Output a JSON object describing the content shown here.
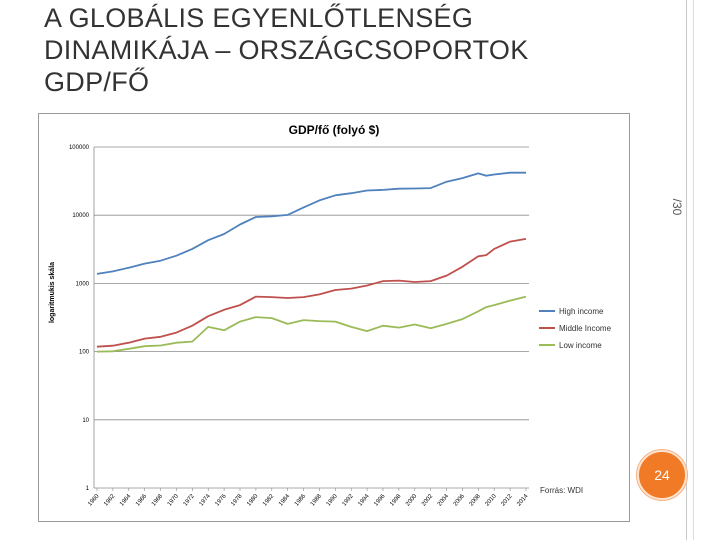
{
  "slide": {
    "title_lines": [
      "A GLOBÁLIS EGYENLŐTLENSÉG",
      "DINAMIKÁJA – ORSZÁGCSOPORTOK",
      "GDP/FŐ"
    ],
    "side_number": "/30",
    "page_number": "24",
    "accent_color": "#f07a26"
  },
  "chart_data": {
    "type": "line",
    "title": "GDP/fő (folyó $)",
    "ylabel": "logaritmukis skála",
    "xlabel": "",
    "yscale": "log",
    "ylim": [
      1,
      100000
    ],
    "yticks": [
      "1",
      "10",
      "100",
      "1000",
      "10000",
      "100000"
    ],
    "xlim": [
      1960,
      2014
    ],
    "xticks": [
      "1960",
      "1962",
      "1964",
      "1966",
      "1968",
      "1970",
      "1972",
      "1974",
      "1976",
      "1978",
      "1980",
      "1982",
      "1984",
      "1986",
      "1988",
      "1990",
      "1992",
      "1994",
      "1996",
      "1998",
      "2000",
      "2002",
      "2004",
      "2006",
      "2008",
      "2010",
      "2012",
      "2014"
    ],
    "grid": true,
    "legend_position": "right",
    "source_note": "Forrás: WDI",
    "series": [
      {
        "name": "High income",
        "color": "#4f81bd",
        "x": [
          1960,
          1962,
          1964,
          1966,
          1968,
          1970,
          1972,
          1974,
          1976,
          1978,
          1980,
          1982,
          1984,
          1986,
          1988,
          1990,
          1992,
          1994,
          1996,
          1998,
          2000,
          2002,
          2004,
          2006,
          2008,
          2009,
          2010,
          2012,
          2014
        ],
        "values": [
          1380,
          1500,
          1700,
          1950,
          2150,
          2550,
          3200,
          4300,
          5300,
          7300,
          9400,
          9600,
          10100,
          13000,
          16500,
          19600,
          21000,
          23000,
          23500,
          24500,
          24600,
          25000,
          31000,
          35000,
          41000,
          38000,
          39500,
          42000,
          42000
        ]
      },
      {
        "name": "Middle Income",
        "color": "#c0504d",
        "x": [
          1960,
          1962,
          1964,
          1966,
          1968,
          1970,
          1972,
          1974,
          1976,
          1978,
          1980,
          1982,
          1984,
          1986,
          1988,
          1990,
          1992,
          1994,
          1996,
          1998,
          2000,
          2002,
          2004,
          2006,
          2008,
          2009,
          2010,
          2012,
          2014
        ],
        "values": [
          118,
          122,
          135,
          155,
          165,
          190,
          240,
          330,
          410,
          480,
          640,
          630,
          610,
          630,
          690,
          800,
          840,
          930,
          1080,
          1100,
          1050,
          1080,
          1300,
          1750,
          2500,
          2600,
          3200,
          4100,
          4500
        ]
      },
      {
        "name": "Low income",
        "color": "#9bbb59",
        "x": [
          1960,
          1962,
          1964,
          1966,
          1968,
          1970,
          1972,
          1974,
          1976,
          1978,
          1980,
          1982,
          1984,
          1986,
          1988,
          1990,
          1992,
          1994,
          1996,
          1998,
          2000,
          2002,
          2004,
          2006,
          2008,
          2009,
          2010,
          2012,
          2014
        ],
        "values": [
          100,
          101,
          110,
          120,
          123,
          135,
          140,
          230,
          205,
          275,
          320,
          310,
          255,
          290,
          280,
          275,
          230,
          200,
          240,
          225,
          250,
          220,
          255,
          300,
          390,
          450,
          480,
          560,
          640
        ]
      }
    ]
  }
}
